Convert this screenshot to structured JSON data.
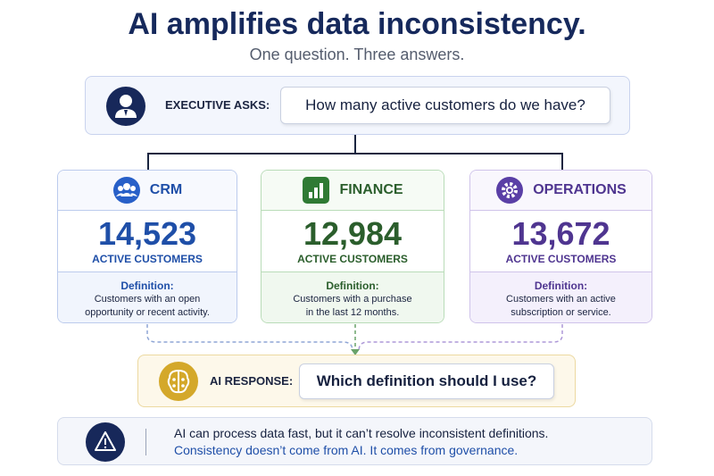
{
  "header": {
    "title": "AI amplifies data inconsistency.",
    "subtitle": "One question. Three answers."
  },
  "question": {
    "label": "EXECUTIVE ASKS:",
    "text": "How many active customers do we have?"
  },
  "cards": [
    {
      "name": "CRM",
      "number": "14,523",
      "metric": "ACTIVE CUSTOMERS",
      "definition_label": "Definition:",
      "definition": [
        "Customers with an open",
        "opportunity or recent activity."
      ]
    },
    {
      "name": "FINANCE",
      "number": "12,984",
      "metric": "ACTIVE CUSTOMERS",
      "definition_label": "Definition:",
      "definition": [
        "Customers with a purchase",
        "in the last 12 months."
      ]
    },
    {
      "name": "OPERATIONS",
      "number": "13,672",
      "metric": "ACTIVE CUSTOMERS",
      "definition_label": "Definition:",
      "definition": [
        "Customers with an active",
        "subscription or service."
      ]
    }
  ],
  "response": {
    "label": "AI RESPONSE:",
    "text": "Which definition should I use?"
  },
  "footer": {
    "line1": "AI can process data fast, but it can’t resolve inconsistent definitions.",
    "line2": "Consistency doesn’t come from AI. It comes from governance."
  }
}
